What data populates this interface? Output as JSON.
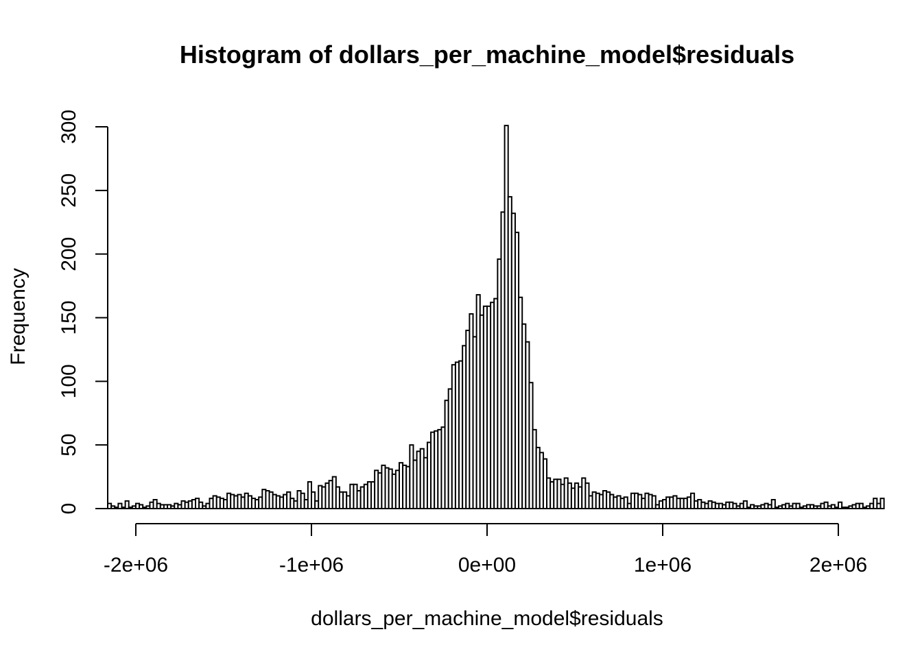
{
  "chart_data": {
    "type": "bar",
    "title": "Histogram of dollars_per_machine_model$residuals",
    "xlabel": "dollars_per_machine_model$residuals",
    "ylabel": "Frequency",
    "bin_width": 20000,
    "bin_start": -2160000,
    "xlim": [
      -2160000,
      2160000
    ],
    "ylim": [
      0,
      300
    ],
    "x_ticks": [
      -2000000,
      -1000000,
      0,
      1000000,
      2000000
    ],
    "x_tick_labels": [
      "-2e+06",
      "-1e+06",
      "0e+00",
      "1e+06",
      "2e+06"
    ],
    "y_ticks": [
      0,
      50,
      100,
      150,
      200,
      250,
      300
    ],
    "y_tick_labels": [
      "0",
      "50",
      "100",
      "150",
      "200",
      "250",
      "300"
    ],
    "grid": false,
    "counts": [
      4,
      2,
      1,
      4,
      1,
      6,
      1,
      2,
      4,
      3,
      1,
      2,
      5,
      7,
      4,
      3,
      3,
      3,
      2,
      4,
      3,
      6,
      5,
      6,
      7,
      8,
      5,
      2,
      4,
      8,
      10,
      9,
      8,
      7,
      12,
      11,
      10,
      11,
      9,
      12,
      10,
      8,
      7,
      9,
      15,
      14,
      13,
      11,
      10,
      9,
      11,
      13,
      8,
      6,
      14,
      12,
      7,
      21,
      13,
      6,
      18,
      17,
      20,
      22,
      25,
      17,
      13,
      13,
      10,
      19,
      19,
      14,
      17,
      19,
      21,
      21,
      30,
      28,
      34,
      32,
      31,
      27,
      30,
      36,
      34,
      33,
      50,
      38,
      45,
      47,
      40,
      52,
      60,
      61,
      62,
      64,
      85,
      94,
      113,
      115,
      116,
      128,
      140,
      153,
      135,
      168,
      152,
      159,
      159,
      162,
      165,
      196,
      233,
      301,
      245,
      232,
      217,
      166,
      145,
      131,
      99,
      62,
      48,
      44,
      39,
      24,
      21,
      23,
      23,
      19,
      24,
      20,
      16,
      20,
      17,
      24,
      20,
      10,
      13,
      12,
      11,
      14,
      13,
      11,
      9,
      10,
      8,
      9,
      4,
      12,
      12,
      11,
      8,
      12,
      11,
      10,
      3,
      6,
      7,
      9,
      9,
      10,
      8,
      8,
      8,
      9,
      12,
      6,
      7,
      5,
      4,
      6,
      5,
      4,
      4,
      3,
      5,
      5,
      4,
      2,
      4,
      6,
      1,
      3,
      2,
      2,
      3,
      4,
      3,
      7,
      1,
      2,
      3,
      4,
      2,
      4,
      4,
      1,
      2,
      3,
      3,
      2,
      2,
      4,
      5,
      2,
      3,
      1,
      5,
      1,
      1,
      2,
      3,
      4,
      4,
      1,
      2,
      4,
      8,
      4,
      8
    ]
  }
}
